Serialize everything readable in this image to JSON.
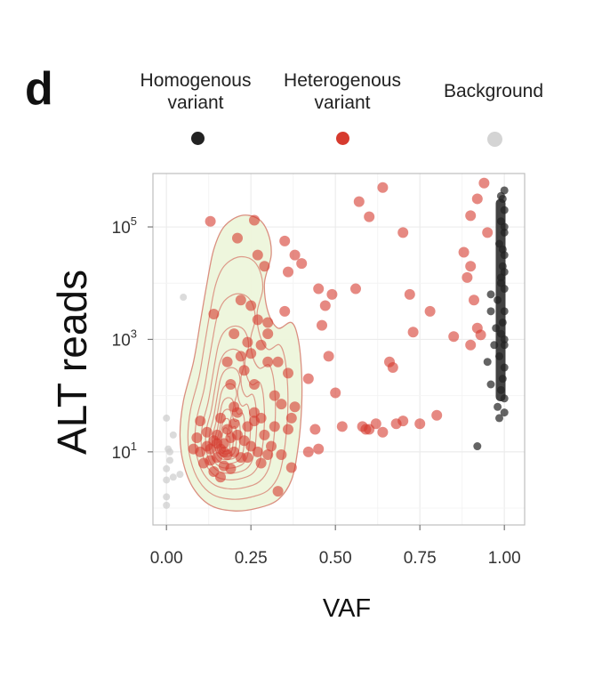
{
  "panel_label": "d",
  "legend": [
    {
      "line1": "Homogenous",
      "line2": "variant",
      "color": "#222222"
    },
    {
      "line1": "Heterogenous",
      "line2": "variant",
      "color": "#d63a2e"
    },
    {
      "line1": "Background",
      "line2": "",
      "color": "#d4d4d4"
    }
  ],
  "chart_data": {
    "type": "scatter",
    "title": "",
    "xlabel": "VAF",
    "ylabel": "ALT reads",
    "xlim": [
      -0.04,
      1.06
    ],
    "ylim_log10": [
      -0.3,
      5.95
    ],
    "yscale": "log10",
    "x_ticks": [
      0.0,
      0.25,
      0.5,
      0.75,
      1.0
    ],
    "x_tick_labels": [
      "0.00",
      "0.25",
      "0.50",
      "0.75",
      "1.00"
    ],
    "y_ticks_log10": [
      1,
      3,
      5
    ],
    "y_tick_base": "10",
    "y_tick_exponents": [
      "1",
      "3",
      "5"
    ],
    "grid": true,
    "density_contour": {
      "series": "Heterogenous variant",
      "fill": "#eef6dc",
      "stroke": "#d98a7a",
      "peak": [
        0.17,
        1.1
      ]
    },
    "series": [
      {
        "name": "Background",
        "color": "#cfcfcf",
        "points": [
          [
            0.0,
            1.6
          ],
          [
            0.005,
            1.05
          ],
          [
            0.0,
            0.7
          ],
          [
            0.01,
            1.0
          ],
          [
            0.0,
            0.5
          ],
          [
            0.0,
            0.2
          ],
          [
            0.02,
            0.55
          ],
          [
            0.0,
            0.05
          ],
          [
            0.04,
            0.6
          ],
          [
            0.01,
            0.85
          ],
          [
            0.05,
            3.75
          ],
          [
            0.02,
            1.3
          ]
        ]
      },
      {
        "name": "Homogenous variant",
        "color": "#222222",
        "points": [
          [
            0.995,
            5.5
          ],
          [
            1.0,
            5.3
          ],
          [
            0.99,
            5.1
          ],
          [
            1.0,
            4.9
          ],
          [
            0.985,
            4.7
          ],
          [
            1.0,
            4.5
          ],
          [
            0.995,
            4.3
          ],
          [
            0.99,
            4.1
          ],
          [
            1.0,
            3.9
          ],
          [
            0.98,
            3.7
          ],
          [
            1.0,
            3.5
          ],
          [
            0.995,
            3.3
          ],
          [
            0.99,
            3.1
          ],
          [
            1.0,
            2.9
          ],
          [
            0.985,
            2.7
          ],
          [
            1.0,
            2.5
          ],
          [
            0.995,
            2.3
          ],
          [
            0.99,
            2.1
          ],
          [
            1.0,
            1.95
          ],
          [
            0.98,
            1.8
          ],
          [
            1.0,
            5.65
          ],
          [
            0.99,
            4.0
          ],
          [
            1.0,
            3.0
          ],
          [
            0.96,
            3.8
          ],
          [
            0.96,
            3.5
          ],
          [
            0.95,
            2.6
          ],
          [
            0.96,
            2.2
          ],
          [
            0.92,
            1.1
          ],
          [
            0.985,
            1.6
          ],
          [
            0.995,
            4.6
          ],
          [
            1.0,
            5.0
          ],
          [
            0.975,
            3.2
          ],
          [
            0.97,
            2.9
          ],
          [
            1.0,
            4.2
          ],
          [
            0.99,
            5.55
          ],
          [
            1.0,
            1.7
          ]
        ]
      },
      {
        "name": "Heterogenous variant",
        "color": "#d63a2e",
        "points": [
          [
            0.13,
            5.1
          ],
          [
            0.21,
            4.8
          ],
          [
            0.26,
            5.12
          ],
          [
            0.27,
            4.5
          ],
          [
            0.22,
            3.7
          ],
          [
            0.29,
            4.3
          ],
          [
            0.14,
            3.45
          ],
          [
            0.25,
            3.6
          ],
          [
            0.2,
            3.1
          ],
          [
            0.24,
            2.95
          ],
          [
            0.27,
            3.35
          ],
          [
            0.3,
            3.1
          ],
          [
            0.22,
            2.7
          ],
          [
            0.18,
            2.6
          ],
          [
            0.3,
            2.6
          ],
          [
            0.33,
            2.6
          ],
          [
            0.35,
            3.5
          ],
          [
            0.36,
            2.4
          ],
          [
            0.32,
            2.0
          ],
          [
            0.34,
            1.85
          ],
          [
            0.38,
            1.8
          ],
          [
            0.37,
            1.6
          ],
          [
            0.36,
            1.4
          ],
          [
            0.34,
            0.95
          ],
          [
            0.37,
            0.72
          ],
          [
            0.33,
            0.3
          ],
          [
            0.35,
            4.75
          ],
          [
            0.36,
            4.2
          ],
          [
            0.38,
            4.5
          ],
          [
            0.4,
            4.35
          ],
          [
            0.45,
            3.9
          ],
          [
            0.47,
            3.6
          ],
          [
            0.49,
            3.8
          ],
          [
            0.46,
            3.25
          ],
          [
            0.48,
            2.7
          ],
          [
            0.42,
            2.3
          ],
          [
            0.5,
            2.05
          ],
          [
            0.52,
            1.45
          ],
          [
            0.58,
            1.45
          ],
          [
            0.6,
            1.4
          ],
          [
            0.62,
            1.5
          ],
          [
            0.64,
            1.35
          ],
          [
            0.68,
            1.5
          ],
          [
            0.7,
            1.55
          ],
          [
            0.66,
            2.6
          ],
          [
            0.72,
            3.8
          ],
          [
            0.78,
            3.5
          ],
          [
            0.85,
            3.05
          ],
          [
            0.8,
            1.65
          ],
          [
            0.75,
            1.5
          ],
          [
            0.57,
            5.45
          ],
          [
            0.64,
            5.7
          ],
          [
            0.6,
            5.18
          ],
          [
            0.56,
            3.9
          ],
          [
            0.7,
            4.9
          ],
          [
            0.73,
            3.13
          ],
          [
            0.67,
            2.5
          ],
          [
            0.59,
            1.4
          ],
          [
            0.45,
            1.05
          ],
          [
            0.42,
            1.0
          ],
          [
            0.44,
            1.4
          ],
          [
            0.92,
            5.5
          ],
          [
            0.94,
            5.78
          ],
          [
            0.9,
            5.2
          ],
          [
            0.88,
            4.55
          ],
          [
            0.9,
            4.3
          ],
          [
            0.92,
            3.2
          ],
          [
            0.9,
            2.9
          ],
          [
            0.93,
            3.08
          ],
          [
            0.95,
            4.9
          ],
          [
            0.89,
            4.1
          ],
          [
            0.91,
            3.7
          ],
          [
            0.1,
            1.0
          ],
          [
            0.12,
            1.1
          ],
          [
            0.14,
            1.2
          ],
          [
            0.15,
            0.9
          ],
          [
            0.16,
            1.05
          ],
          [
            0.17,
            1.15
          ],
          [
            0.18,
            0.95
          ],
          [
            0.19,
            1.25
          ],
          [
            0.2,
            1.0
          ],
          [
            0.21,
            1.3
          ],
          [
            0.22,
            0.9
          ],
          [
            0.12,
            1.35
          ],
          [
            0.13,
            0.85
          ],
          [
            0.15,
            1.3
          ],
          [
            0.17,
            0.75
          ],
          [
            0.19,
            0.7
          ],
          [
            0.18,
            1.4
          ],
          [
            0.2,
            1.5
          ],
          [
            0.23,
            1.2
          ],
          [
            0.24,
            1.45
          ],
          [
            0.25,
            1.1
          ],
          [
            0.26,
            1.55
          ],
          [
            0.28,
            1.6
          ],
          [
            0.29,
            1.3
          ],
          [
            0.27,
            1.0
          ],
          [
            0.3,
            0.95
          ],
          [
            0.28,
            0.8
          ],
          [
            0.11,
            0.8
          ],
          [
            0.09,
            1.25
          ],
          [
            0.08,
            1.05
          ],
          [
            0.1,
            1.55
          ],
          [
            0.14,
            0.65
          ],
          [
            0.16,
            0.55
          ],
          [
            0.24,
            0.9
          ],
          [
            0.26,
            1.7
          ],
          [
            0.2,
            1.8
          ],
          [
            0.16,
            1.6
          ],
          [
            0.31,
            1.1
          ],
          [
            0.32,
            1.45
          ],
          [
            0.26,
            2.2
          ],
          [
            0.23,
            2.45
          ],
          [
            0.19,
            2.2
          ],
          [
            0.28,
            2.9
          ],
          [
            0.3,
            3.3
          ],
          [
            0.25,
            2.75
          ],
          [
            0.21,
            1.7
          ],
          [
            0.13,
            1.05
          ],
          [
            0.15,
            1.15
          ],
          [
            0.17,
            1.0
          ]
        ]
      }
    ]
  }
}
